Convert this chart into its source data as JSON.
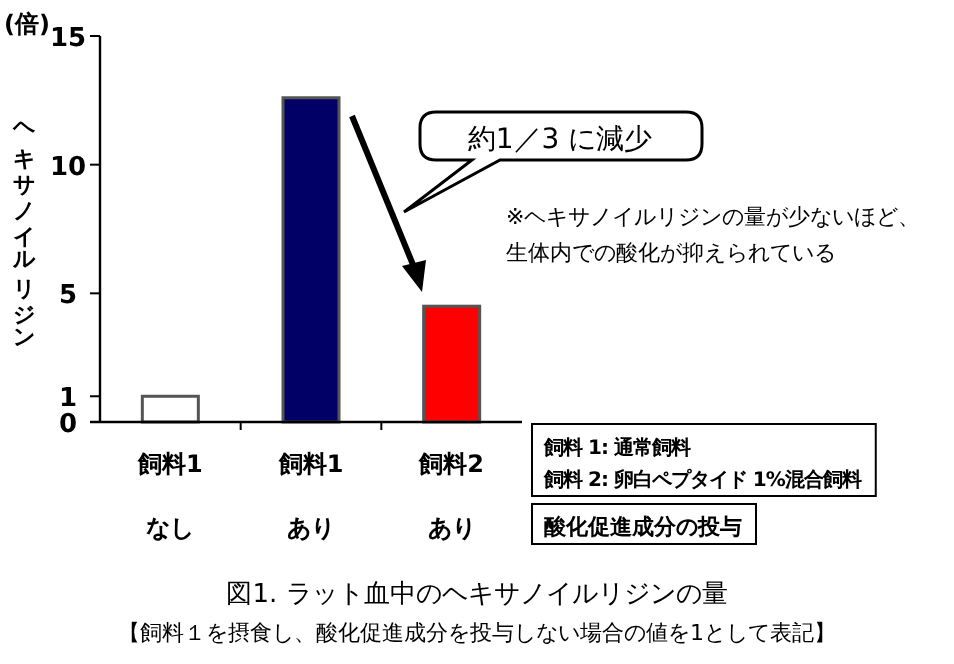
{
  "chart_data": {
    "type": "bar",
    "title": "図1. ラット血中のヘキサノイルリジンの量",
    "subtitle": "【飼料１を摂食し、酸化促進成分を投与しない場合の値を1として表記】",
    "ylabel": "ヘキサノイルリジン",
    "categories": [
      "飼料1",
      "飼料1",
      "飼料2"
    ],
    "values": [
      1.0,
      12.6,
      4.5
    ],
    "colors": [
      "#ffffff",
      "#000066",
      "#ff0000"
    ],
    "ylim": [
      0,
      15
    ],
    "yticks": [
      0,
      1,
      5,
      10,
      15
    ],
    "grid": false,
    "annotations": [
      "(倍)",
      "約1／3 に減少",
      "※ヘキサノイルリジンの量が少ないほど、",
      "生体内での酸化が抑えられている",
      "飼料 1: 通常飼料",
      "飼料 2: 卵白ペプタイド 1%混合飼料",
      "酸化促進成分の投与",
      "なし",
      "あり",
      "あり"
    ]
  }
}
